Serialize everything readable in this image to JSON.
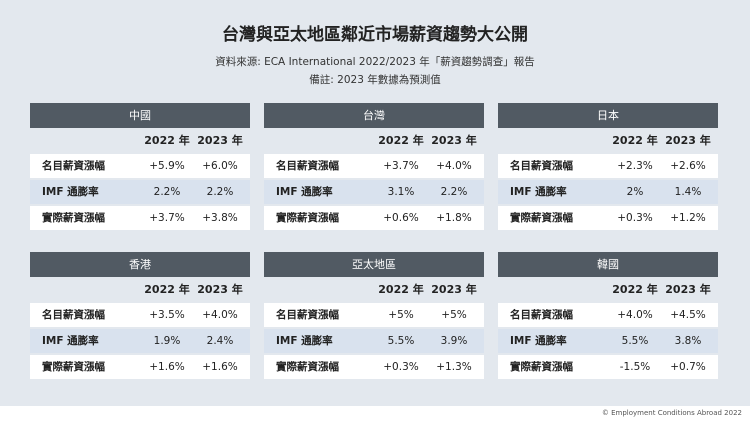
{
  "header": {
    "title": "台灣與亞太地區鄰近市場薪資趨勢大公開",
    "source": "資料來源: ECA International 2022/2023 年「薪資趨勢調查」報告",
    "note": "備註:  2023 年數據為預測值"
  },
  "columns": [
    "2022 年",
    "2023 年"
  ],
  "panels": [
    {
      "name": "中國",
      "rows": [
        [
          "名目薪資漲幅",
          "+5.9%",
          "+6.0%"
        ],
        [
          "IMF 通膨率",
          "2.2%",
          "2.2%"
        ],
        [
          "實際薪資漲幅",
          "+3.7%",
          "+3.8%"
        ]
      ]
    },
    {
      "name": "台灣",
      "rows": [
        [
          "名目薪資漲幅",
          "+3.7%",
          "+4.0%"
        ],
        [
          "IMF 通膨率",
          "3.1%",
          "2.2%"
        ],
        [
          "實際薪資漲幅",
          "+0.6%",
          "+1.8%"
        ]
      ]
    },
    {
      "name": "日本",
      "rows": [
        [
          "名目薪資漲幅",
          "+2.3%",
          "+2.6%"
        ],
        [
          "IMF 通膨率",
          "2%",
          "1.4%"
        ],
        [
          "實際薪資漲幅",
          "+0.3%",
          "+1.2%"
        ]
      ]
    },
    {
      "name": "香港",
      "rows": [
        [
          "名目薪資漲幅",
          "+3.5%",
          "+4.0%"
        ],
        [
          "IMF 通膨率",
          "1.9%",
          "2.4%"
        ],
        [
          "實際薪資漲幅",
          "+1.6%",
          "+1.6%"
        ]
      ]
    },
    {
      "name": "亞太地區",
      "rows": [
        [
          "名目薪資漲幅",
          "+5%",
          "+5%"
        ],
        [
          "IMF 通膨率",
          "5.5%",
          "3.9%"
        ],
        [
          "實際薪資漲幅",
          "+0.3%",
          "+1.3%"
        ]
      ]
    },
    {
      "name": "韓國",
      "rows": [
        [
          "名目薪資漲幅",
          "+4.0%",
          "+4.5%"
        ],
        [
          "IMF 通膨率",
          "5.5%",
          "3.8%"
        ],
        [
          "實際薪資漲幅",
          "-1.5%",
          "+0.7%"
        ]
      ]
    }
  ],
  "footer": "© Employment Conditions Abroad 2022"
}
